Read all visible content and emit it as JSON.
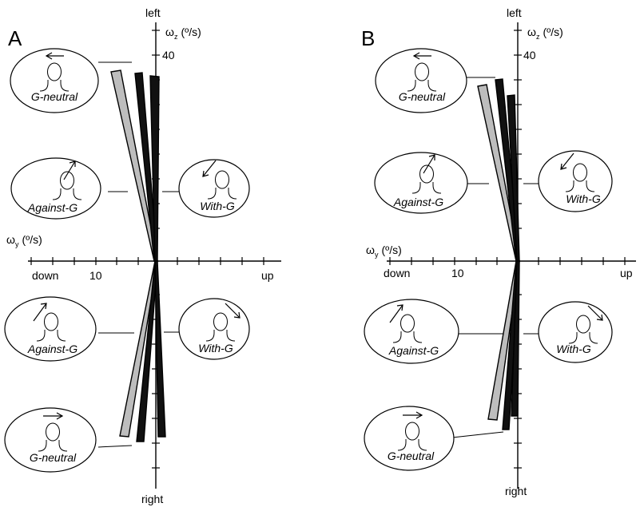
{
  "panels": [
    {
      "letter": "A",
      "axis": {
        "top": "left",
        "bottom": "right",
        "left": "down",
        "right": "up",
        "omega_z": "ω",
        "omega_z_sub": "z",
        "omega_z_unit": "(º/s)",
        "omega_y": "ω",
        "omega_y_sub": "y",
        "omega_y_unit": "(º/s)",
        "tick_z": "40",
        "tick_y": "10"
      },
      "bubbles": [
        {
          "label": "G-neutral",
          "icon": "head-arrow-left-icon"
        },
        {
          "label": "Against-G",
          "icon": "head-arrow-up-left-icon"
        },
        {
          "label": "With-G",
          "icon": "head-arrow-down-left-icon"
        },
        {
          "label": "Against-G",
          "icon": "head-arrow-up-right-icon"
        },
        {
          "label": "With-G",
          "icon": "head-arrow-down-right-icon"
        },
        {
          "label": "G-neutral",
          "icon": "head-arrow-right-icon"
        }
      ]
    },
    {
      "letter": "B",
      "axis": {
        "top": "left",
        "bottom": "right",
        "left": "down",
        "right": "up",
        "omega_z": "ω",
        "omega_z_sub": "z",
        "omega_z_unit": "(º/s)",
        "omega_y": "ω",
        "omega_y_sub": "y",
        "omega_y_unit": "(º/s)",
        "tick_z": "40",
        "tick_y": "10"
      },
      "bubbles": [
        {
          "label": "G-neutral",
          "icon": "head-arrow-left-icon"
        },
        {
          "label": "Against-G",
          "icon": "head-arrow-up-left-icon"
        },
        {
          "label": "With-G",
          "icon": "head-arrow-down-left-icon"
        },
        {
          "label": "Against-G",
          "icon": "head-arrow-up-right-icon"
        },
        {
          "label": "With-G",
          "icon": "head-arrow-down-right-icon"
        },
        {
          "label": "G-neutral",
          "icon": "head-arrow-right-icon"
        }
      ]
    }
  ],
  "colors": {
    "ink": "#000000",
    "gray_bar": "#bdbdbd",
    "white": "#ffffff"
  }
}
